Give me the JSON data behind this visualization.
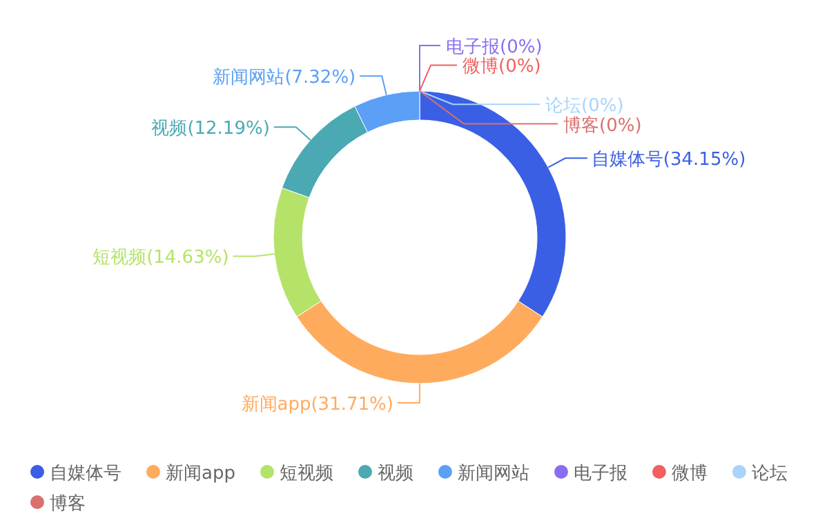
{
  "chart_data": {
    "type": "donut",
    "categories": [
      "自媒体号",
      "新闻app",
      "短视频",
      "视频",
      "新闻网站",
      "电子报",
      "微博",
      null,
      "论坛",
      "博客"
    ],
    "values": [
      34.15,
      31.71,
      14.63,
      12.19,
      7.32,
      0,
      0,
      0,
      0,
      0
    ],
    "colors": [
      "#3a5fe5",
      "#ffab5e",
      "#b5e36a",
      "#4aa9b3",
      "#5b9ff6",
      "#8a6df0",
      "#f26060",
      "#4fc96e",
      "#a8d4fb",
      "#d9706d"
    ],
    "value_labels": [
      "(34.15%)",
      "(31.71%)",
      "(14.63%)",
      "(12.19%)",
      "(7.32%)",
      "(0%)",
      "(0%)",
      null,
      "(0%)",
      "(0%)"
    ],
    "legend": "bottom"
  }
}
